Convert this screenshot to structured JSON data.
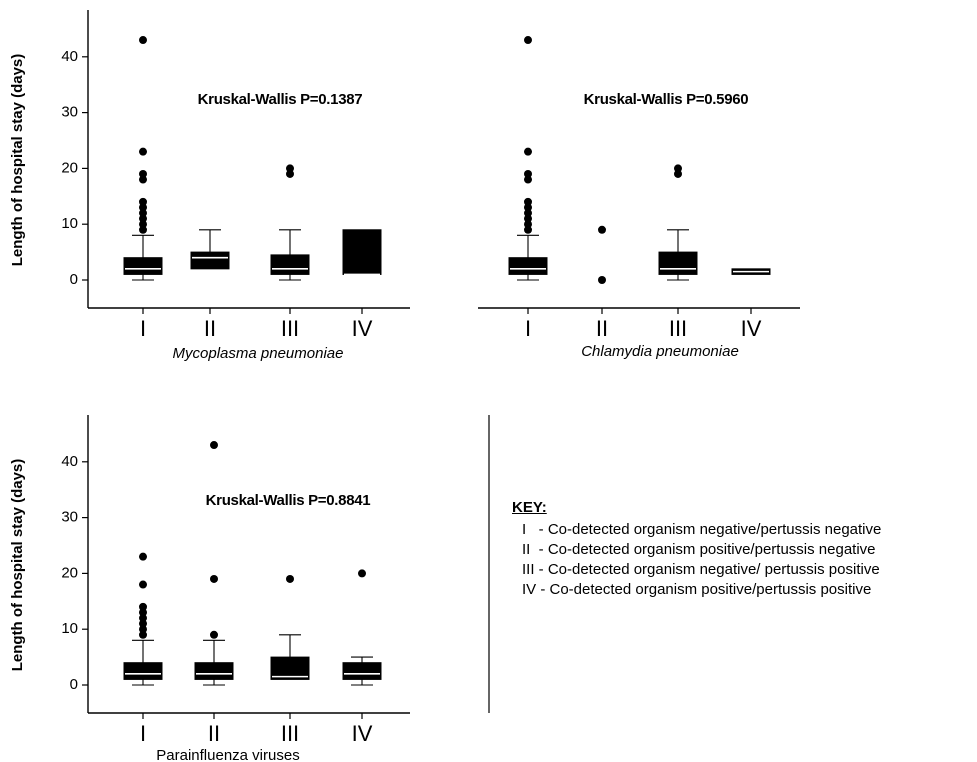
{
  "chart_data": [
    {
      "type": "box",
      "xlabel": "Mycoplasma pneumoniae",
      "xlabel_italic": true,
      "ylabel": "Length of hospital stay (days)",
      "ylim": [
        -5,
        48
      ],
      "yticks": [
        0,
        10,
        20,
        30,
        40
      ],
      "categories": [
        "I",
        "II",
        "III",
        "IV"
      ],
      "annotation": "Kruskal-Wallis P=0.1387",
      "boxes": [
        {
          "min": 0,
          "q1": 1,
          "median": 2,
          "q3": 4,
          "max": 8,
          "outliers": [
            9,
            10,
            11,
            12,
            13,
            14,
            18,
            19,
            23,
            43
          ]
        },
        {
          "min": 2,
          "q1": 2,
          "median": 4,
          "q3": 5,
          "max": 9,
          "outliers": []
        },
        {
          "min": 0,
          "q1": 1,
          "median": 2,
          "q3": 4.5,
          "max": 9,
          "outliers": [
            19,
            20
          ]
        },
        {
          "min": 1,
          "q1": 1,
          "median": 1,
          "q3": 9,
          "max": 9,
          "outliers": []
        }
      ]
    },
    {
      "type": "box",
      "xlabel": "Chlamydia pneumoniae",
      "xlabel_italic": true,
      "ylabel": "",
      "ylim": [
        -5,
        48
      ],
      "yticks": [],
      "categories": [
        "I",
        "II",
        "III",
        "IV"
      ],
      "annotation": "Kruskal-Wallis P=0.5960",
      "boxes": [
        {
          "min": 0,
          "q1": 1,
          "median": 2,
          "q3": 4,
          "max": 8,
          "outliers": [
            9,
            10,
            11,
            12,
            13,
            14,
            18,
            19,
            23,
            43
          ]
        },
        {
          "min": null,
          "q1": null,
          "median": null,
          "q3": null,
          "max": null,
          "outliers": [
            0,
            9
          ]
        },
        {
          "min": 0,
          "q1": 1,
          "median": 2,
          "q3": 5,
          "max": 9,
          "outliers": [
            19,
            20
          ]
        },
        {
          "min": 1,
          "q1": 1,
          "median": 1.5,
          "q3": 2,
          "max": 2,
          "outliers": []
        }
      ]
    },
    {
      "type": "box",
      "xlabel": "Parainfluenza viruses",
      "xlabel_italic": false,
      "ylabel": "Length of hospital stay (days)",
      "ylim": [
        -5,
        48
      ],
      "yticks": [
        0,
        10,
        20,
        30,
        40
      ],
      "categories": [
        "I",
        "II",
        "III",
        "IV"
      ],
      "annotation": "Kruskal-Wallis P=0.8841",
      "boxes": [
        {
          "min": 0,
          "q1": 1,
          "median": 2,
          "q3": 4,
          "max": 8,
          "outliers": [
            9,
            10,
            11,
            12,
            13,
            14,
            18,
            23
          ]
        },
        {
          "min": 0,
          "q1": 1,
          "median": 2,
          "q3": 4,
          "max": 8,
          "outliers": [
            9,
            19,
            43
          ]
        },
        {
          "min": 1,
          "q1": 1,
          "median": 1.5,
          "q3": 5,
          "max": 9,
          "outliers": [
            19
          ]
        },
        {
          "min": 0,
          "q1": 1,
          "median": 2,
          "q3": 4,
          "max": 5,
          "outliers": [
            20
          ]
        }
      ]
    }
  ],
  "key": {
    "title": "KEY:",
    "items": [
      "I   - Co-detected organism negative/pertussis negative",
      "II  - Co-detected organism positive/pertussis negative",
      "III - Co-detected organism negative/ pertussis positive",
      "IV - Co-detected organism positive/pertussis positive"
    ]
  }
}
